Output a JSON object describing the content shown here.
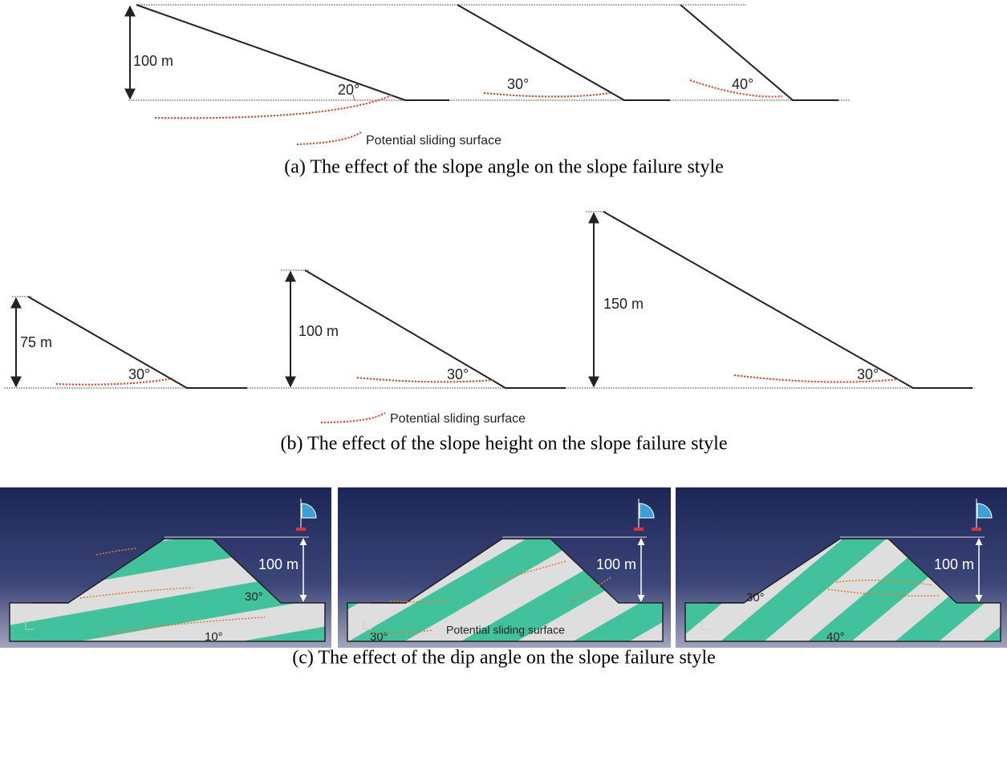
{
  "panel_a": {
    "height_label": "100 m",
    "angles": [
      "20°",
      "30°",
      "40°"
    ],
    "legend": "Potential sliding surface",
    "caption": "(a) The effect of the slope angle on the slope failure style"
  },
  "panel_b": {
    "slopes": [
      {
        "height": "75 m",
        "angle": "30°"
      },
      {
        "height": "100 m",
        "angle": "30°"
      },
      {
        "height": "150 m",
        "angle": "30°"
      }
    ],
    "legend": "Potential sliding surface",
    "caption": "(b) The effect of the slope height on the slope failure style"
  },
  "panel_c": {
    "models": [
      {
        "height": "100 m",
        "slope_angle": "30°",
        "dip_angle": "10°"
      },
      {
        "height": "100 m",
        "dip_angle": "30°"
      },
      {
        "height": "100 m",
        "slope_angle": "30°",
        "dip_angle": "40°"
      }
    ],
    "legend": "Potential sliding surface",
    "caption": "(c) The effect of the dip angle on the slope failure style"
  }
}
